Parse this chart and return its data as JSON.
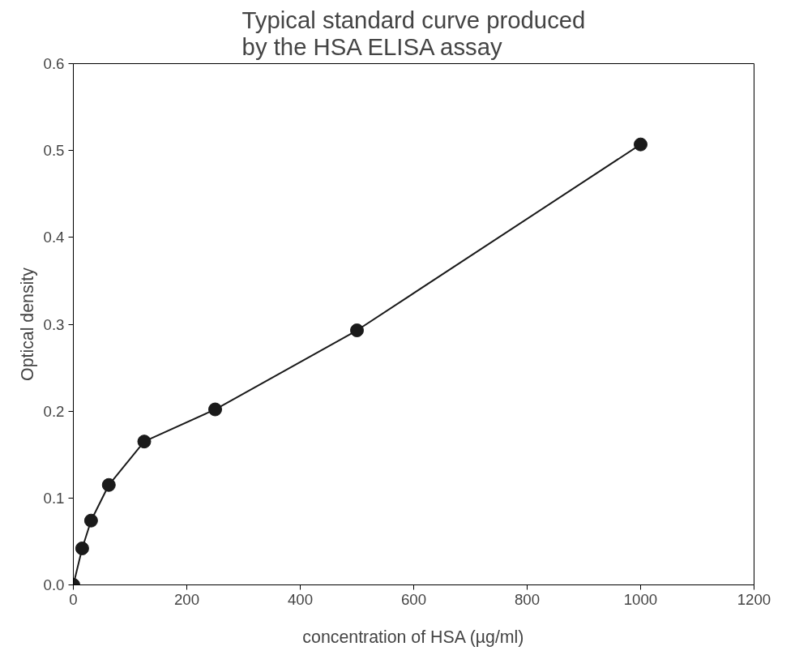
{
  "chart_data": {
    "type": "line",
    "title": "Typical standard curve produced\nby the HSA ELISA assay",
    "xlabel": "concentration of HSA (µg/ml)",
    "ylabel": "Optical density",
    "x": [
      0,
      15.6,
      31.25,
      62.5,
      125,
      250,
      500,
      1000
    ],
    "series": [
      {
        "color": "#1a1a1a",
        "values": [
          0.0,
          0.042,
          0.074,
          0.115,
          0.165,
          0.202,
          0.293,
          0.507
        ]
      }
    ],
    "xlim": [
      0,
      1200
    ],
    "xticks": [
      0,
      200,
      400,
      600,
      800,
      1000,
      1200
    ],
    "ylim": [
      0,
      0.6
    ],
    "yticks": [
      {
        "value": 0,
        "label": "0.0"
      },
      0.1,
      0.2,
      0.3,
      0.4,
      0.5,
      0.6
    ],
    "marker": "circle",
    "line_style": "solid",
    "grid": false
  }
}
